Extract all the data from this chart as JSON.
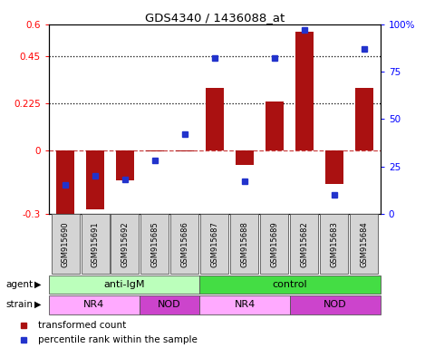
{
  "title": "GDS4340 / 1436088_at",
  "samples": [
    "GSM915690",
    "GSM915691",
    "GSM915692",
    "GSM915685",
    "GSM915686",
    "GSM915687",
    "GSM915688",
    "GSM915689",
    "GSM915682",
    "GSM915683",
    "GSM915684"
  ],
  "transformed_count": [
    -0.3,
    -0.28,
    -0.14,
    -0.005,
    -0.005,
    0.3,
    -0.07,
    0.235,
    0.565,
    -0.16,
    0.3
  ],
  "percentile_rank": [
    15,
    20,
    18,
    28,
    42,
    82,
    17,
    82,
    97,
    10,
    87
  ],
  "ylim_left": [
    -0.3,
    0.6
  ],
  "ylim_right": [
    0,
    100
  ],
  "yticks_left": [
    -0.3,
    0,
    0.225,
    0.45,
    0.6
  ],
  "ytick_labels_left": [
    "-0.3",
    "0",
    "0.225",
    "0.45",
    "0.6"
  ],
  "yticks_right": [
    0,
    25,
    50,
    75,
    100
  ],
  "ytick_labels_right": [
    "0",
    "25",
    "50",
    "75",
    "100%"
  ],
  "hlines": [
    0.225,
    0.45
  ],
  "bar_color": "#aa1111",
  "dot_color": "#2233cc",
  "zero_line_color": "#cc4444",
  "agent_groups": [
    {
      "label": "anti-IgM",
      "start": 0,
      "end": 5,
      "color": "#bbffbb"
    },
    {
      "label": "control",
      "start": 5,
      "end": 11,
      "color": "#44dd44"
    }
  ],
  "strain_groups": [
    {
      "label": "NR4",
      "start": 0,
      "end": 3,
      "color": "#ffaaff"
    },
    {
      "label": "NOD",
      "start": 3,
      "end": 5,
      "color": "#cc44cc"
    },
    {
      "label": "NR4",
      "start": 5,
      "end": 8,
      "color": "#ffaaff"
    },
    {
      "label": "NOD",
      "start": 8,
      "end": 11,
      "color": "#cc44cc"
    }
  ],
  "legend_items": [
    {
      "label": "transformed count",
      "color": "#aa1111"
    },
    {
      "label": "percentile rank within the sample",
      "color": "#2233cc"
    }
  ],
  "bg_color": "#ffffff"
}
